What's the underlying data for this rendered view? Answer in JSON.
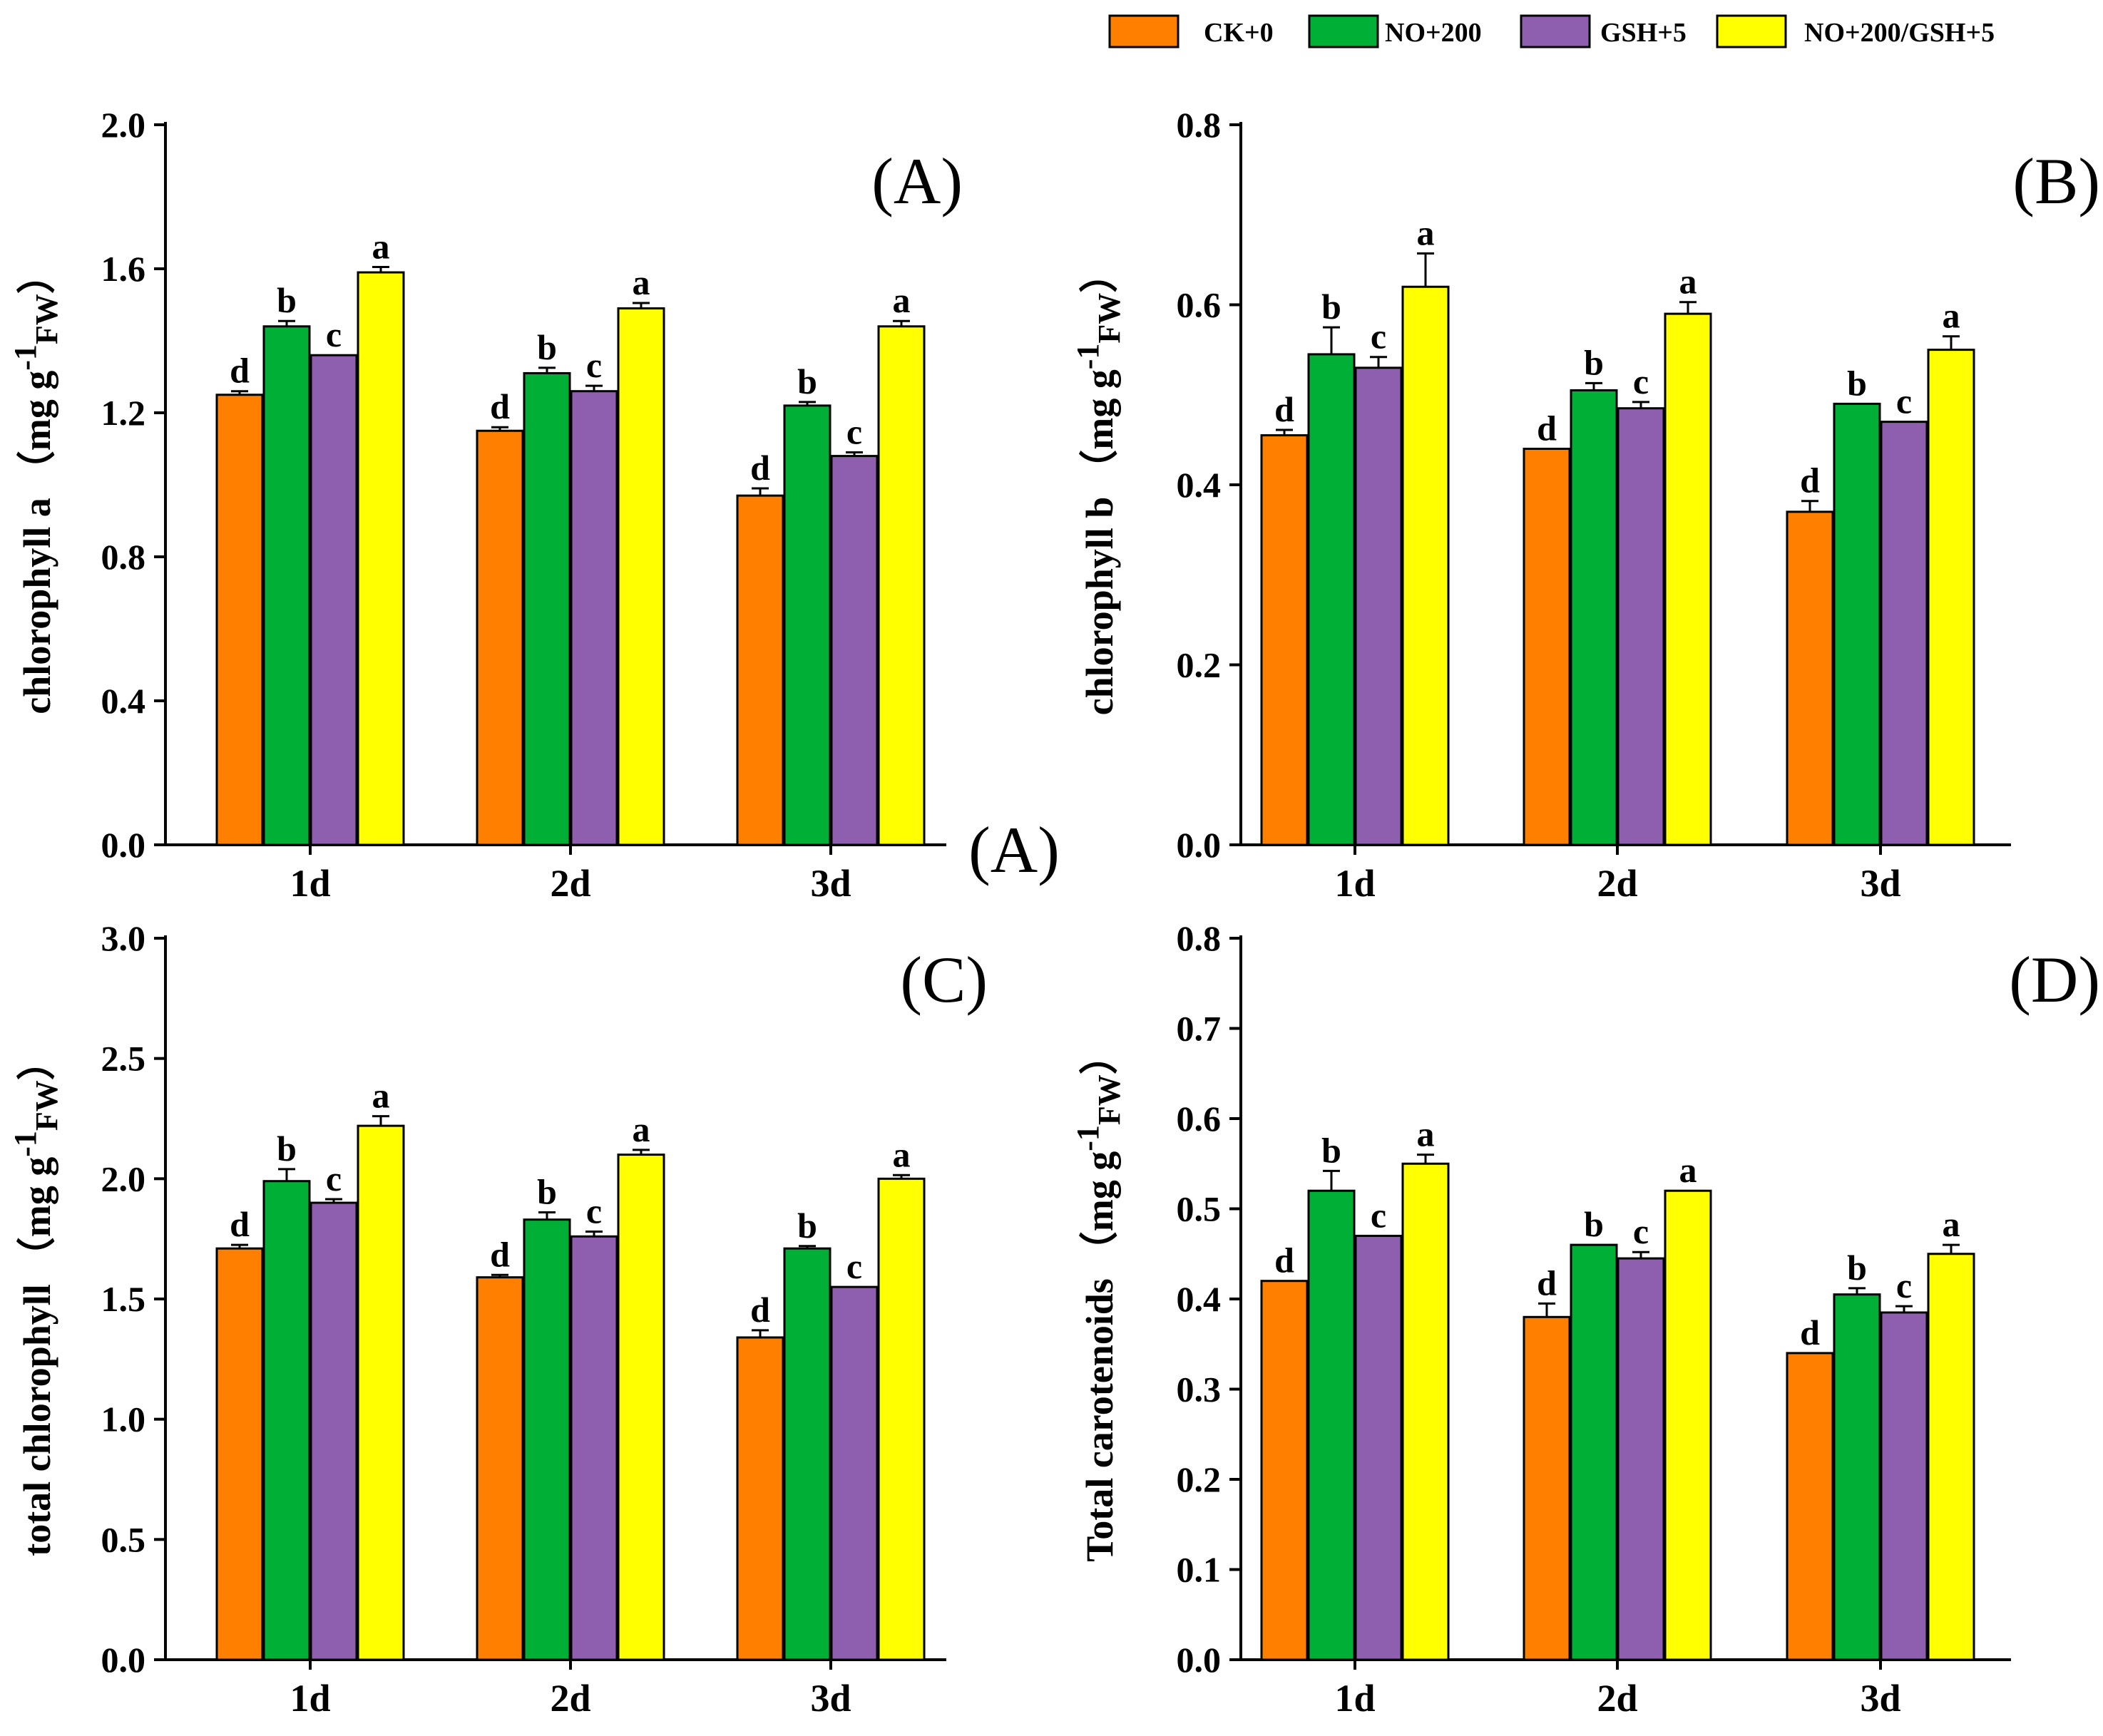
{
  "colors": {
    "CK+0": "#FF7F00",
    "NO+200": "#00B036",
    "GSH+5": "#8F5FAF",
    "NO+200/GSH+5": "#FFFF00"
  },
  "legend": {
    "position": "top-right",
    "entries": [
      "CK+0",
      "NO+200",
      "GSH+5",
      "NO+200/GSH+5"
    ]
  },
  "stray_label": "(A)",
  "chart_data": [
    {
      "type": "bar",
      "panel_label": "(A)",
      "ylabel": "chlorophyll a （mg g-1FW）",
      "ylabel_main": "chlorophyll a",
      "ylabel_unit_pre": "（mg g",
      "ylabel_unit_sup": "-1",
      "ylabel_unit_sub": "FW",
      "ylabel_unit_post": "）",
      "categories": [
        "1d",
        "2d",
        "3d"
      ],
      "ylim": [
        0,
        2.0
      ],
      "yticks": [
        "0.0",
        "0.4",
        "0.8",
        "1.2",
        "1.6",
        "2.0"
      ],
      "series": [
        {
          "name": "CK+0",
          "values": [
            1.25,
            1.15,
            0.97
          ],
          "errors": [
            0.01,
            0.01,
            0.02
          ],
          "labels": [
            "d",
            "d",
            "d"
          ]
        },
        {
          "name": "NO+200",
          "values": [
            1.44,
            1.31,
            1.22
          ],
          "errors": [
            0.015,
            0.015,
            0.01
          ],
          "labels": [
            "b",
            "b",
            "b"
          ]
        },
        {
          "name": "GSH+5",
          "values": [
            1.36,
            1.26,
            1.08
          ],
          "errors": [
            0,
            0.015,
            0.01
          ],
          "labels": [
            "c",
            "c",
            "c"
          ]
        },
        {
          "name": "NO+200/GSH+5",
          "values": [
            1.59,
            1.49,
            1.44
          ],
          "errors": [
            0.015,
            0.015,
            0.015
          ],
          "labels": [
            "a",
            "a",
            "a"
          ]
        }
      ]
    },
    {
      "type": "bar",
      "panel_label": "(B)",
      "ylabel": "chlorophyll b （mg g-1FW）",
      "ylabel_main": "chlorophyll b",
      "ylabel_unit_pre": "（mg g",
      "ylabel_unit_sup": "-1",
      "ylabel_unit_sub": "FW",
      "ylabel_unit_post": "）",
      "categories": [
        "1d",
        "2d",
        "3d"
      ],
      "ylim": [
        0,
        0.8
      ],
      "yticks": [
        "0.0",
        "0.2",
        "0.4",
        "0.6",
        "0.8"
      ],
      "series": [
        {
          "name": "CK+0",
          "values": [
            0.455,
            0.44,
            0.37
          ],
          "errors": [
            0.006,
            0,
            0.012
          ],
          "labels": [
            "d",
            "d",
            "d"
          ]
        },
        {
          "name": "NO+200",
          "values": [
            0.545,
            0.505,
            0.49
          ],
          "errors": [
            0.03,
            0.008,
            0
          ],
          "labels": [
            "b",
            "b",
            "b"
          ]
        },
        {
          "name": "GSH+5",
          "values": [
            0.53,
            0.485,
            0.47
          ],
          "errors": [
            0.012,
            0.007,
            0
          ],
          "labels": [
            "c",
            "c",
            "c"
          ]
        },
        {
          "name": "NO+200/GSH+5",
          "values": [
            0.62,
            0.59,
            0.55
          ],
          "errors": [
            0.037,
            0.013,
            0.015
          ],
          "labels": [
            "a",
            "a",
            "a"
          ]
        }
      ]
    },
    {
      "type": "bar",
      "panel_label": "(C)",
      "ylabel": "total chlorophyll （mg g-1FW）",
      "ylabel_main": "total chlorophyll",
      "ylabel_unit_pre": "（mg g",
      "ylabel_unit_sup": "-1",
      "ylabel_unit_sub": "FW",
      "ylabel_unit_post": "）",
      "categories": [
        "1d",
        "2d",
        "3d"
      ],
      "ylim": [
        0,
        3.0
      ],
      "yticks": [
        "0.0",
        "0.5",
        "1.0",
        "1.5",
        "2.0",
        "2.5",
        "3.0"
      ],
      "series": [
        {
          "name": "CK+0",
          "values": [
            1.71,
            1.59,
            1.34
          ],
          "errors": [
            0.015,
            0.01,
            0.03
          ],
          "labels": [
            "d",
            "d",
            "d"
          ]
        },
        {
          "name": "NO+200",
          "values": [
            1.99,
            1.83,
            1.71
          ],
          "errors": [
            0.05,
            0.03,
            0.01
          ],
          "labels": [
            "b",
            "b",
            "b"
          ]
        },
        {
          "name": "GSH+5",
          "values": [
            1.9,
            1.76,
            1.55
          ],
          "errors": [
            0.015,
            0.02,
            0
          ],
          "labels": [
            "c",
            "c",
            "c"
          ]
        },
        {
          "name": "NO+200/GSH+5",
          "values": [
            2.22,
            2.1,
            2.0
          ],
          "errors": [
            0.04,
            0.02,
            0.015
          ],
          "labels": [
            "a",
            "a",
            "a"
          ]
        }
      ]
    },
    {
      "type": "bar",
      "panel_label": "(D)",
      "ylabel": "Total carotenoids （mg g-1FW）",
      "ylabel_main": "Total carotenoids",
      "ylabel_unit_pre": "（mg g",
      "ylabel_unit_sup": "-1",
      "ylabel_unit_sub": "FW",
      "ylabel_unit_post": "）",
      "categories": [
        "1d",
        "2d",
        "3d"
      ],
      "ylim": [
        0,
        0.8
      ],
      "yticks": [
        "0.0",
        "0.1",
        "0.2",
        "0.3",
        "0.4",
        "0.5",
        "0.6",
        "0.7",
        "0.8"
      ],
      "series": [
        {
          "name": "CK+0",
          "values": [
            0.42,
            0.38,
            0.34
          ],
          "errors": [
            0,
            0.015,
            0
          ],
          "labels": [
            "d",
            "d",
            "d"
          ]
        },
        {
          "name": "NO+200",
          "values": [
            0.52,
            0.46,
            0.405
          ],
          "errors": [
            0.022,
            0,
            0.007
          ],
          "labels": [
            "b",
            "b",
            "b"
          ]
        },
        {
          "name": "GSH+5",
          "values": [
            0.47,
            0.445,
            0.385
          ],
          "errors": [
            0,
            0.007,
            0.007
          ],
          "labels": [
            "c",
            "c",
            "c"
          ]
        },
        {
          "name": "NO+200/GSH+5",
          "values": [
            0.55,
            0.52,
            0.45
          ],
          "errors": [
            0.01,
            0,
            0.01
          ],
          "labels": [
            "a",
            "a",
            "a"
          ]
        }
      ]
    }
  ]
}
